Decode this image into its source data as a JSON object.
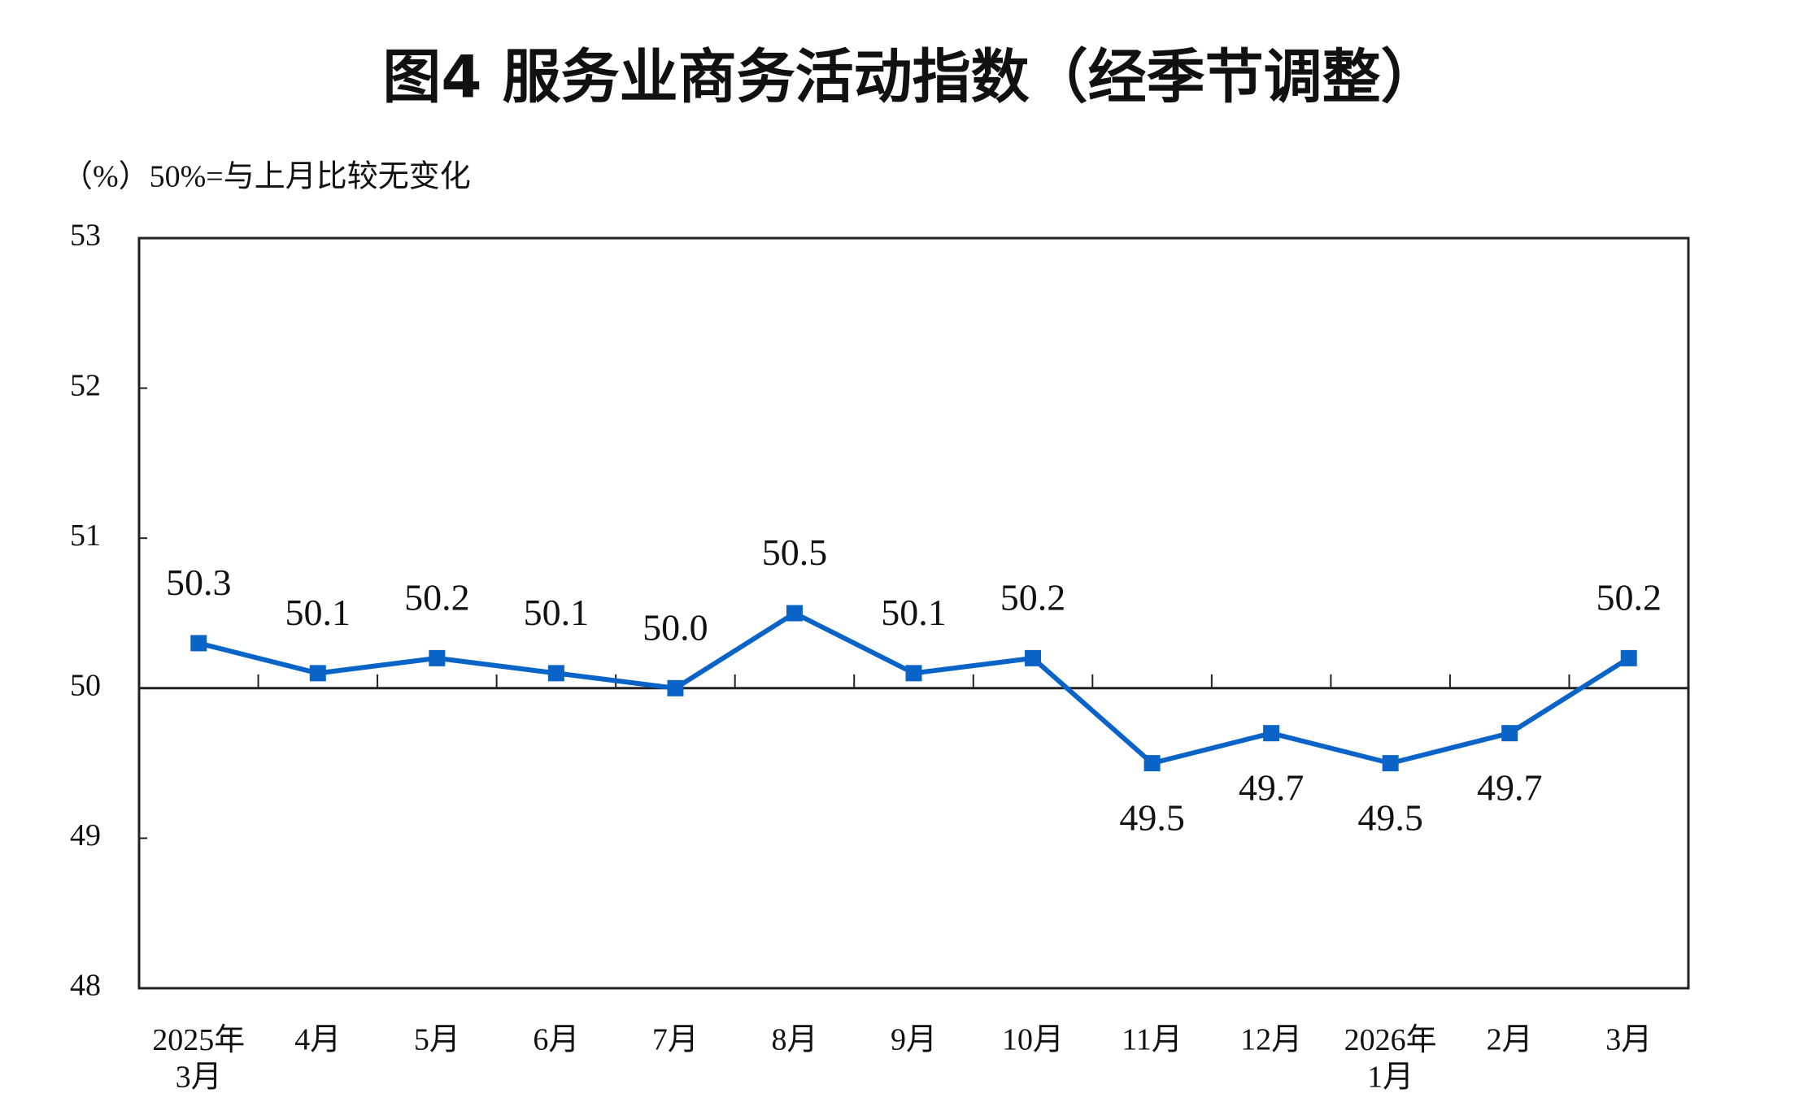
{
  "chart_data": {
    "type": "line",
    "title": "图4  服务业商务活动指数（经季节调整）",
    "subtitle": "（%）50%=与上月比较无变化",
    "categories": [
      "2025年\n3月",
      "4月",
      "5月",
      "6月",
      "7月",
      "8月",
      "9月",
      "10月",
      "11月",
      "12月",
      "2026年\n1月",
      "2月",
      "3月"
    ],
    "values": [
      50.3,
      50.1,
      50.2,
      50.1,
      50.0,
      50.5,
      50.1,
      50.2,
      49.5,
      49.7,
      49.5,
      49.7,
      50.2
    ],
    "value_labels": [
      "50.3",
      "50.1",
      "50.2",
      "50.1",
      "50.0",
      "50.5",
      "50.1",
      "50.2",
      "49.5",
      "49.7",
      "49.5",
      "49.7",
      "50.2"
    ],
    "color": "#0a64c8",
    "ylim": [
      48,
      53
    ],
    "yticks": [
      48,
      49,
      50,
      51,
      52,
      53
    ],
    "reference_line": 50
  }
}
